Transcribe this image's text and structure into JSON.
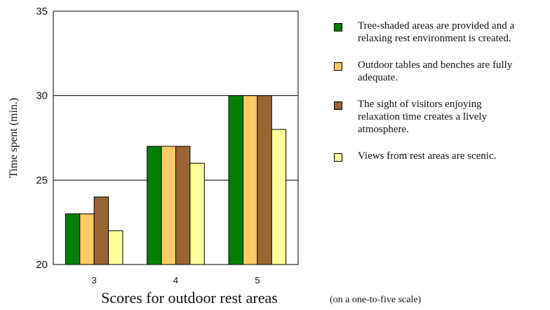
{
  "chart_data": {
    "type": "bar",
    "categories": [
      "3",
      "4",
      "5"
    ],
    "series": [
      {
        "name": "Tree-shaded areas are provided and a relaxing rest environment is created.",
        "values": [
          23,
          27,
          30
        ],
        "color": "#008000"
      },
      {
        "name": "Outdoor tables and benches are fully adequate.",
        "values": [
          23,
          27,
          30
        ],
        "color": "#FFC966"
      },
      {
        "name": "The sight of visitors enjoying relaxation time creates a lively atmosphere.",
        "values": [
          24,
          27,
          30
        ],
        "color": "#996633"
      },
      {
        "name": "Views from rest areas are scenic.",
        "values": [
          22,
          26,
          28
        ],
        "color": "#FFFF99"
      }
    ],
    "xlabel": "Scores for outdoor rest areas",
    "ylabel": "Time spent (min.)",
    "ylim": [
      20,
      35
    ],
    "yticks": [
      "20",
      "25",
      "30",
      "35"
    ],
    "grid": true,
    "legend_position": "right"
  },
  "legend": [
    {
      "lines": [
        "Tree-shaded areas are provided and a",
        "relaxing rest environment is created."
      ],
      "color": "#008000"
    },
    {
      "lines": [
        "Outdoor tables and benches are fully",
        "adequate."
      ],
      "color": "#FFC966"
    },
    {
      "lines": [
        "The sight of visitors enjoying",
        "relaxation time creates a lively",
        "atmosphere."
      ],
      "color": "#996633"
    },
    {
      "lines": [
        "Views from rest areas are scenic."
      ],
      "color": "#FFFF99"
    }
  ],
  "scale_note": "(on a one-to-five scale)"
}
